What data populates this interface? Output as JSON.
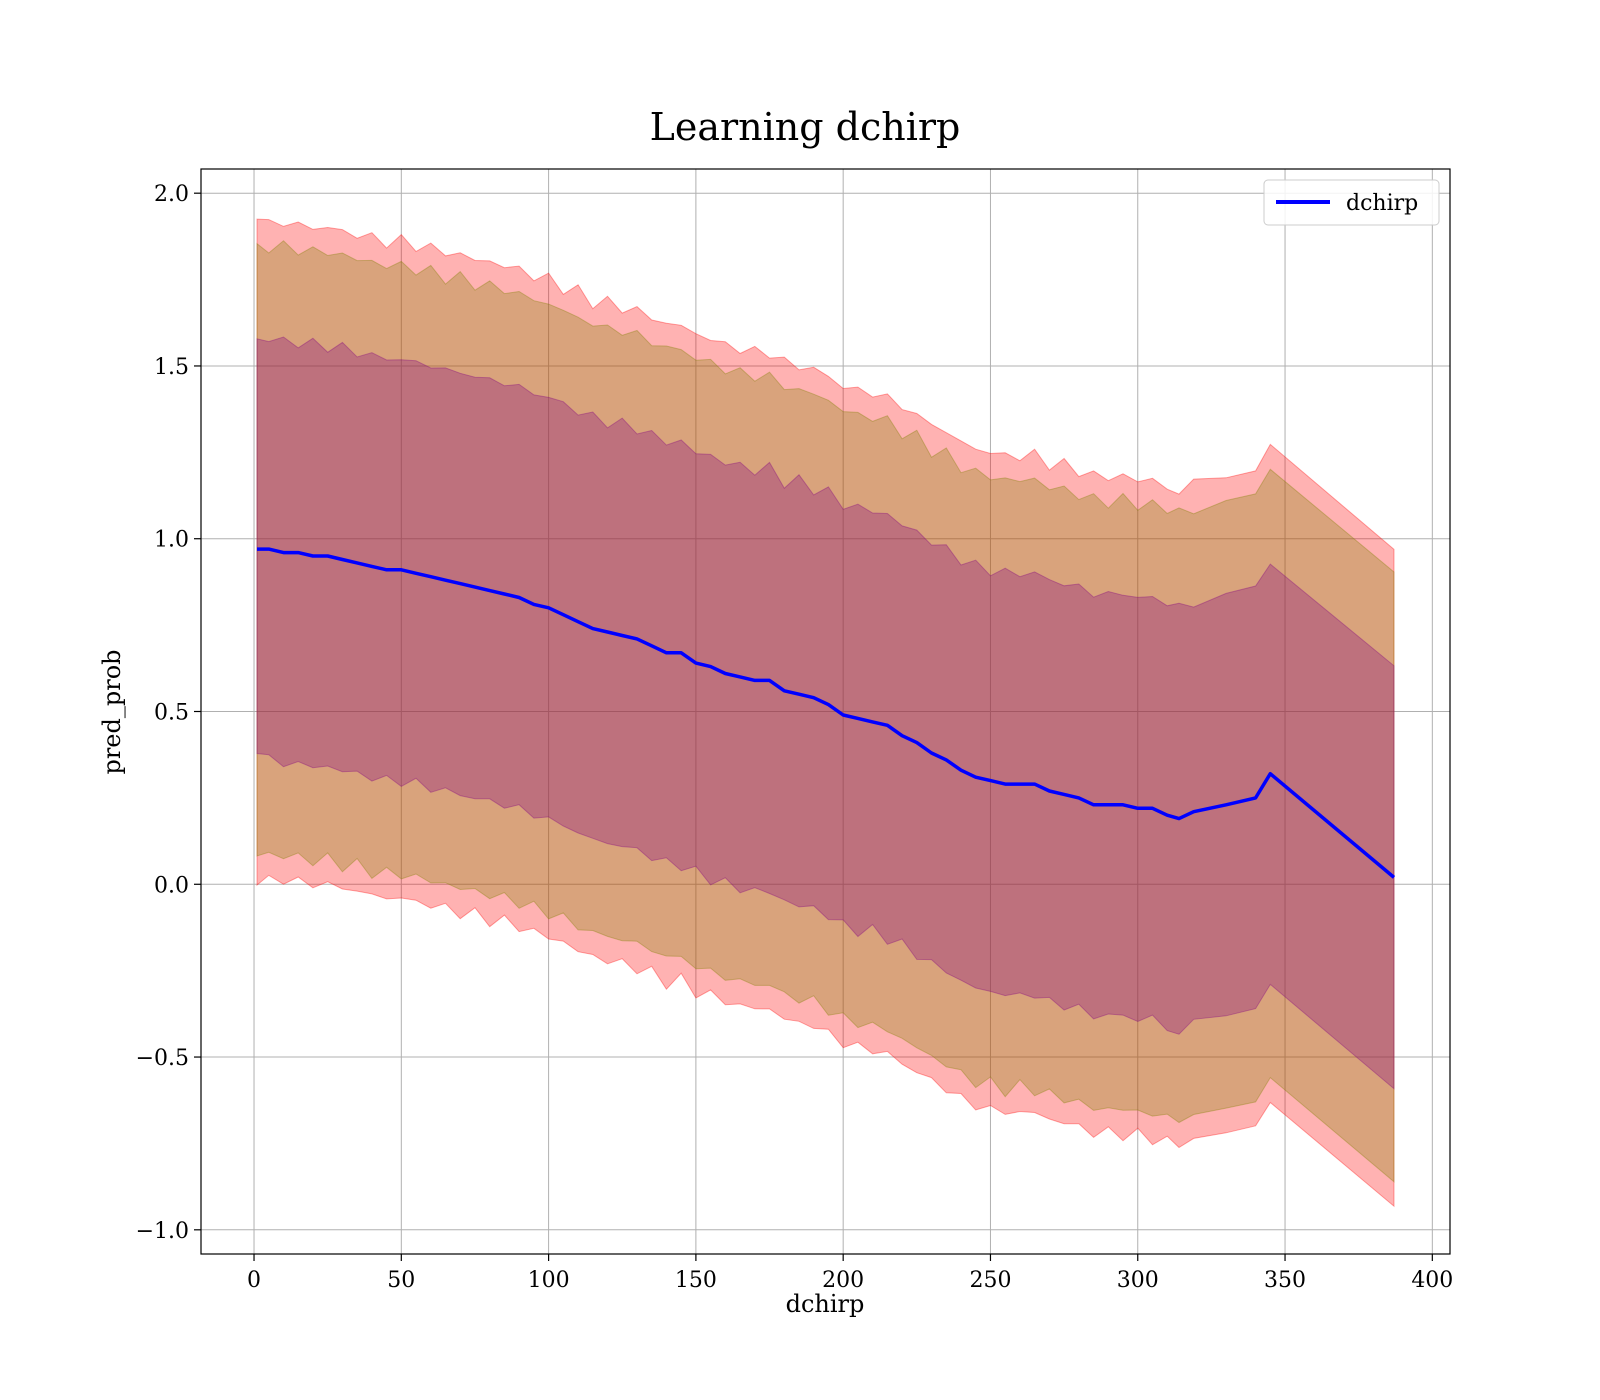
{
  "chart_data": {
    "type": "line",
    "title": "Learning dchirp",
    "xlabel": "dchirp",
    "ylabel": "pred_prob",
    "xlim": [
      -18,
      406
    ],
    "ylim": [
      -1.07,
      2.07
    ],
    "xticks": [
      0,
      50,
      100,
      150,
      200,
      250,
      300,
      350,
      400
    ],
    "yticks": [
      -1.0,
      -0.5,
      0.0,
      0.5,
      1.0,
      1.5,
      2.0
    ],
    "xtick_labels": [
      "0",
      "50",
      "100",
      "150",
      "200",
      "250",
      "300",
      "350",
      "400"
    ],
    "ytick_labels": [
      "−1.0",
      "−0.5",
      "0.0",
      "0.5",
      "1.0",
      "1.5",
      "2.0"
    ],
    "grid": true,
    "legend": {
      "placement": "top-right",
      "entries": [
        "dchirp"
      ]
    },
    "series": [
      {
        "name": "dchirp",
        "color": "#0000ff",
        "x": [
          1,
          5,
          10,
          15,
          20,
          25,
          30,
          35,
          40,
          45,
          50,
          55,
          60,
          65,
          70,
          75,
          80,
          85,
          90,
          95,
          100,
          105,
          110,
          115,
          120,
          125,
          130,
          135,
          140,
          145,
          150,
          155,
          160,
          165,
          170,
          175,
          180,
          185,
          190,
          195,
          200,
          205,
          210,
          215,
          220,
          225,
          230,
          235,
          240,
          245,
          250,
          255,
          260,
          265,
          270,
          275,
          280,
          285,
          290,
          295,
          300,
          305,
          310,
          314,
          319,
          330,
          340,
          345,
          387
        ],
        "y": [
          0.97,
          0.97,
          0.96,
          0.96,
          0.95,
          0.95,
          0.94,
          0.93,
          0.92,
          0.91,
          0.91,
          0.9,
          0.89,
          0.88,
          0.87,
          0.86,
          0.85,
          0.84,
          0.83,
          0.81,
          0.8,
          0.78,
          0.76,
          0.74,
          0.73,
          0.72,
          0.71,
          0.69,
          0.67,
          0.67,
          0.64,
          0.63,
          0.61,
          0.6,
          0.59,
          0.59,
          0.56,
          0.55,
          0.54,
          0.52,
          0.49,
          0.48,
          0.47,
          0.46,
          0.43,
          0.41,
          0.38,
          0.36,
          0.33,
          0.31,
          0.3,
          0.29,
          0.29,
          0.29,
          0.27,
          0.26,
          0.25,
          0.23,
          0.23,
          0.23,
          0.22,
          0.22,
          0.2,
          0.19,
          0.21,
          0.23,
          0.25,
          0.32,
          0.02
        ]
      }
    ],
    "bands": [
      {
        "color": "#ff0000",
        "opacity": 0.3,
        "offset": 0.95
      },
      {
        "color": "#808000",
        "opacity": 0.3,
        "offset": 0.88
      },
      {
        "color": "#800080",
        "opacity": 0.3,
        "offset": 0.61
      }
    ]
  }
}
